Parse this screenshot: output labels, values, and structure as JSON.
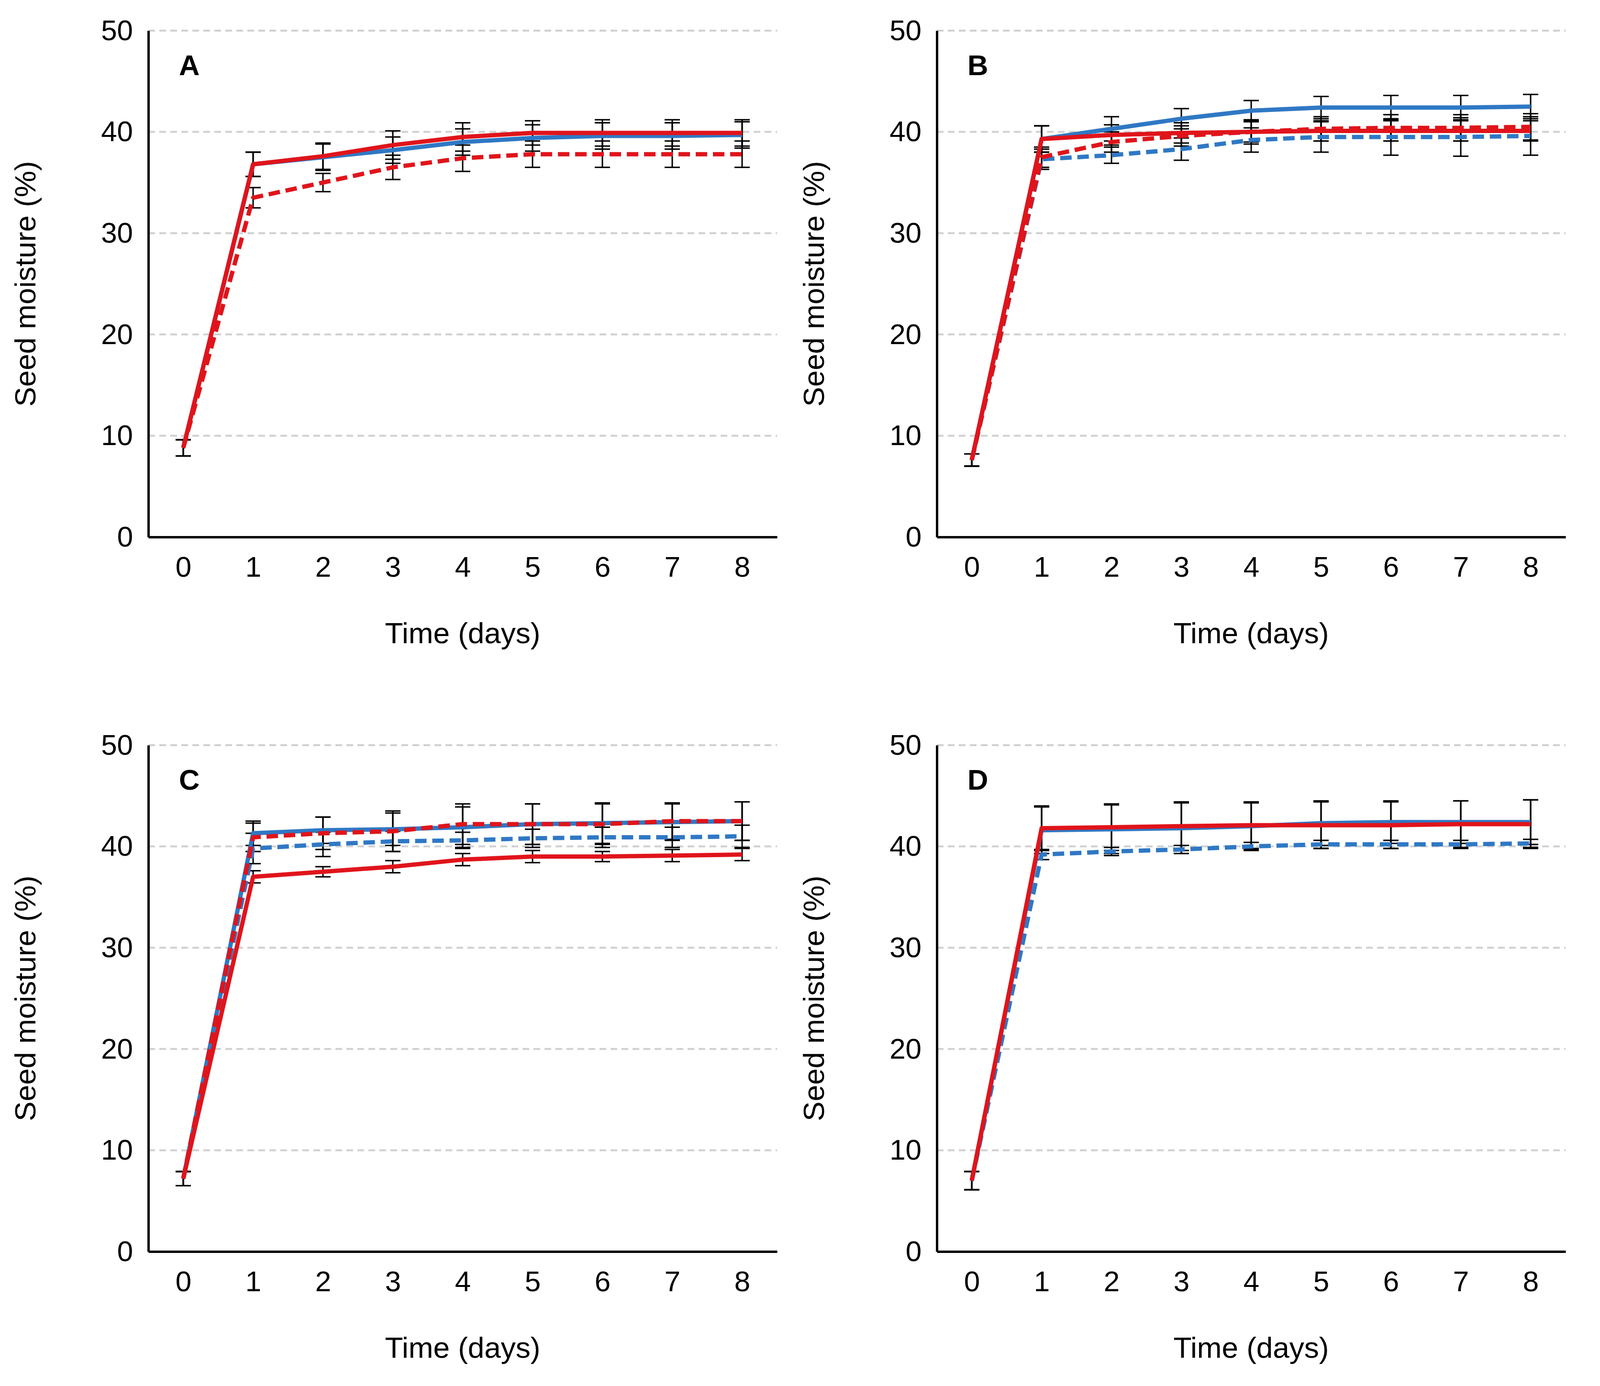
{
  "chart_data": [
    {
      "type": "line",
      "title": "A",
      "x_label": "Time (days)",
      "y_label": "Seed moisture (%)",
      "x": [
        0,
        1,
        2,
        3,
        4,
        5,
        6,
        7,
        8
      ],
      "xlim": [
        -0.5,
        8.5
      ],
      "xticks": [
        0,
        1,
        2,
        3,
        4,
        5,
        6,
        7,
        8
      ],
      "ylim": [
        0,
        50
      ],
      "yticks": [
        0,
        10,
        20,
        30,
        40,
        50
      ],
      "grid": true,
      "series": [
        {
          "color": "#2f78c4",
          "line_style": "solid",
          "values": [
            8.8,
            36.8,
            37.5,
            38.2,
            39.0,
            39.4,
            39.6,
            39.6,
            39.7
          ],
          "errors": [
            0.8,
            1.2,
            1.3,
            1.3,
            1.3,
            1.3,
            1.3,
            1.3,
            1.3
          ]
        },
        {
          "color": "#e0141b",
          "line_style": "dashed",
          "values": [
            8.8,
            33.5,
            35.0,
            36.5,
            37.4,
            37.8,
            37.8,
            37.8,
            37.8
          ],
          "errors": [
            0.8,
            1.0,
            0.9,
            1.2,
            1.3,
            1.3,
            1.3,
            1.3,
            1.3
          ]
        },
        {
          "color": "#e0141b",
          "line_style": "solid",
          "values": [
            8.8,
            36.8,
            37.6,
            38.7,
            39.5,
            39.9,
            39.9,
            39.9,
            39.9
          ],
          "errors": [
            0.8,
            1.2,
            1.3,
            1.4,
            1.4,
            1.2,
            1.3,
            1.3,
            1.3
          ]
        }
      ]
    },
    {
      "type": "line",
      "title": "B",
      "x_label": "Time (days)",
      "y_label": "Seed moisture (%)",
      "x": [
        0,
        1,
        2,
        3,
        4,
        5,
        6,
        7,
        8
      ],
      "xlim": [
        -0.5,
        8.5
      ],
      "xticks": [
        0,
        1,
        2,
        3,
        4,
        5,
        6,
        7,
        8
      ],
      "ylim": [
        0,
        50
      ],
      "yticks": [
        0,
        10,
        20,
        30,
        40,
        50
      ],
      "grid": true,
      "series": [
        {
          "color": "#2f78c4",
          "line_style": "solid",
          "values": [
            7.6,
            39.3,
            40.3,
            41.3,
            42.1,
            42.4,
            42.4,
            42.4,
            42.5
          ],
          "errors": [
            0.6,
            1.3,
            1.2,
            1.0,
            1.0,
            1.1,
            1.2,
            1.2,
            1.2
          ]
        },
        {
          "color": "#2f78c4",
          "line_style": "dashed",
          "values": [
            7.6,
            37.3,
            37.7,
            38.3,
            39.2,
            39.5,
            39.5,
            39.5,
            39.6
          ],
          "errors": [
            0.6,
            1.0,
            0.8,
            1.1,
            1.2,
            1.5,
            1.8,
            1.9,
            1.9
          ]
        },
        {
          "color": "#e0141b",
          "line_style": "dashed",
          "values": [
            7.6,
            37.5,
            39.0,
            39.6,
            40.0,
            40.3,
            40.4,
            40.4,
            40.5
          ],
          "errors": [
            0.6,
            1.0,
            1.0,
            1.0,
            1.2,
            1.2,
            1.3,
            1.3,
            1.3
          ]
        },
        {
          "color": "#e0141b",
          "line_style": "solid",
          "values": [
            7.6,
            39.3,
            39.7,
            39.9,
            40.0,
            40.1,
            40.1,
            40.1,
            40.1
          ],
          "errors": [
            0.6,
            1.3,
            1.0,
            1.0,
            1.0,
            1.0,
            1.0,
            1.0,
            1.0
          ]
        }
      ]
    },
    {
      "type": "line",
      "title": "C",
      "x_label": "Time (days)",
      "y_label": "Seed moisture (%)",
      "x": [
        0,
        1,
        2,
        3,
        4,
        5,
        6,
        7,
        8
      ],
      "xlim": [
        -0.5,
        8.5
      ],
      "xticks": [
        0,
        1,
        2,
        3,
        4,
        5,
        6,
        7,
        8
      ],
      "ylim": [
        0,
        50
      ],
      "yticks": [
        0,
        10,
        20,
        30,
        40,
        50
      ],
      "grid": true,
      "series": [
        {
          "color": "#2f78c4",
          "line_style": "solid",
          "values": [
            7.2,
            41.3,
            41.6,
            41.7,
            41.9,
            42.2,
            42.3,
            42.4,
            42.5
          ],
          "errors": [
            0.7,
            1.2,
            1.3,
            1.6,
            2.0,
            2.0,
            2.0,
            1.8,
            1.9
          ]
        },
        {
          "color": "#2f78c4",
          "line_style": "dashed",
          "values": [
            7.2,
            39.8,
            40.2,
            40.5,
            40.6,
            40.8,
            40.9,
            40.9,
            41.0
          ],
          "errors": [
            0.7,
            1.5,
            1.2,
            1.0,
            0.8,
            0.9,
            1.0,
            1.0,
            1.1
          ]
        },
        {
          "color": "#e0141b",
          "line_style": "dashed",
          "values": [
            7.2,
            40.9,
            41.3,
            41.5,
            42.2,
            42.2,
            42.2,
            42.5,
            42.5
          ],
          "errors": [
            0.7,
            1.4,
            1.6,
            2.0,
            2.0,
            2.0,
            2.0,
            1.8,
            1.9
          ]
        },
        {
          "color": "#e0141b",
          "line_style": "solid",
          "values": [
            7.2,
            37.0,
            37.5,
            38.0,
            38.7,
            39.0,
            39.0,
            39.1,
            39.2
          ],
          "errors": [
            0.7,
            0.6,
            0.5,
            0.6,
            0.6,
            0.6,
            0.5,
            0.6,
            0.6
          ]
        }
      ]
    },
    {
      "type": "line",
      "title": "D",
      "x_label": "Time (days)",
      "y_label": "Seed moisture (%)",
      "x": [
        0,
        1,
        2,
        3,
        4,
        5,
        6,
        7,
        8
      ],
      "xlim": [
        -0.5,
        8.5
      ],
      "xticks": [
        0,
        1,
        2,
        3,
        4,
        5,
        6,
        7,
        8
      ],
      "ylim": [
        0,
        50
      ],
      "yticks": [
        0,
        10,
        20,
        30,
        40,
        50
      ],
      "grid": true,
      "series": [
        {
          "color": "#2f78c4",
          "line_style": "solid",
          "values": [
            7.0,
            41.6,
            41.7,
            41.8,
            42.0,
            42.3,
            42.4,
            42.4,
            42.4
          ],
          "errors": [
            0.9,
            2.3,
            2.4,
            2.5,
            2.3,
            2.2,
            2.1,
            2.1,
            2.2
          ]
        },
        {
          "color": "#2f78c4",
          "line_style": "dashed",
          "values": [
            7.0,
            39.2,
            39.5,
            39.7,
            40.0,
            40.2,
            40.2,
            40.2,
            40.3
          ],
          "errors": [
            0.9,
            0.5,
            0.4,
            0.4,
            0.4,
            0.4,
            0.4,
            0.4,
            0.4
          ]
        },
        {
          "color": "#e0141b",
          "line_style": "solid",
          "values": [
            7.0,
            41.8,
            41.9,
            42.0,
            42.1,
            42.1,
            42.1,
            42.2,
            42.2
          ],
          "errors": [
            0.9,
            2.2,
            2.3,
            2.4,
            2.3,
            2.3,
            2.3,
            2.3,
            2.4
          ]
        }
      ]
    }
  ]
}
